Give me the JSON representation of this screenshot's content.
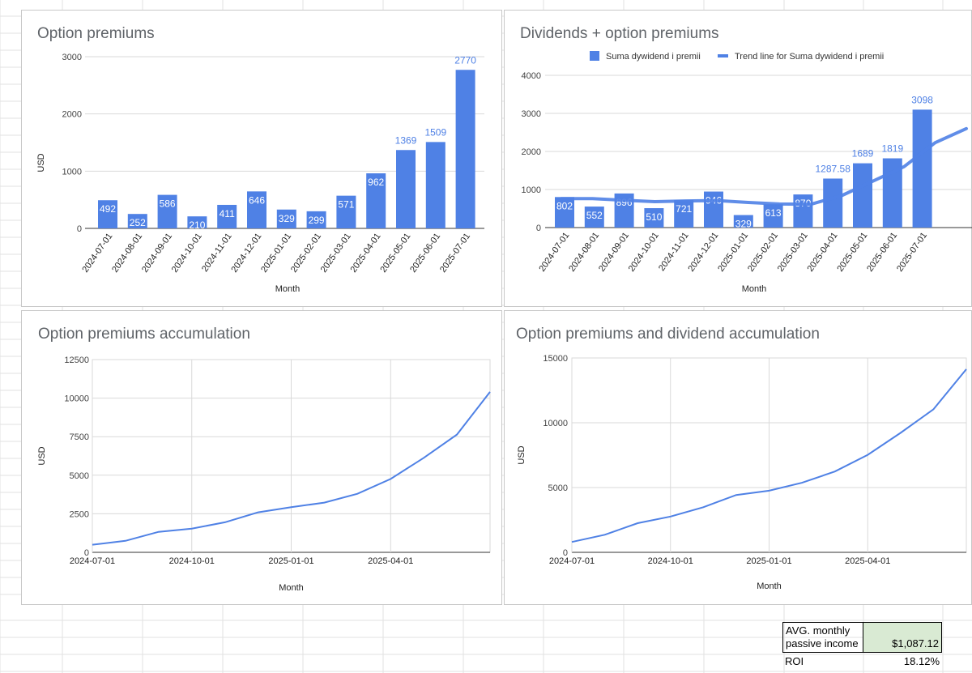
{
  "charts": [
    {
      "type": "bar",
      "title": "Option premiums",
      "xlabel": "Month",
      "ylabel": "USD",
      "ylim": [
        0,
        3000
      ],
      "yticks": [
        0,
        1000,
        2000,
        3000
      ],
      "categories": [
        "2024-07-01",
        "2024-08-01",
        "2024-09-01",
        "2024-10-01",
        "2024-11-01",
        "2024-12-01",
        "2025-01-01",
        "2025-02-01",
        "2025-03-01",
        "2025-04-01",
        "2025-05-01",
        "2025-06-01",
        "2025-07-01"
      ],
      "values": [
        492,
        252,
        586,
        210,
        411,
        646,
        329,
        299,
        571,
        962,
        1369,
        1509,
        2770
      ],
      "labels": [
        "492",
        "252",
        "586",
        "210",
        "411",
        "646",
        "329",
        "299",
        "571",
        "962",
        "1369",
        "1509",
        "2770"
      ],
      "color": "#4f81e5"
    },
    {
      "type": "bar",
      "title": "Dividends + option premiums",
      "xlabel": "Month",
      "ylabel": "",
      "ylim": [
        0,
        4000
      ],
      "yticks": [
        0,
        1000,
        2000,
        3000,
        4000
      ],
      "legend": [
        "Suma dywidend i premii",
        "Trend line for Suma dywidend i premii"
      ],
      "categories": [
        "2024-07-01",
        "2024-08-01",
        "2024-09-01",
        "2024-10-01",
        "2024-11-01",
        "2024-12-01",
        "2025-01-01",
        "2025-02-01",
        "2025-03-01",
        "2025-04-01",
        "2025-05-01",
        "2025-06-01",
        "2025-07-01"
      ],
      "values": [
        802,
        552,
        896,
        510,
        721,
        946,
        329,
        613,
        870,
        1287.58,
        1689,
        1819,
        3098
      ],
      "labels": [
        "802",
        "552",
        "896",
        "510",
        "721",
        "946",
        "329",
        "613",
        "870",
        "1287.58",
        "1689",
        "1819",
        "3098"
      ],
      "trend": [
        760,
        760,
        720,
        680,
        700,
        710,
        660,
        620,
        610,
        840,
        1220,
        1600,
        2230,
        2600
      ],
      "color": "#4f81e5"
    },
    {
      "type": "line",
      "title": "Option premiums accumulation",
      "xlabel": "Month",
      "ylabel": "USD",
      "ylim": [
        0,
        12500
      ],
      "yticks": [
        0,
        2500,
        5000,
        7500,
        10000,
        12500
      ],
      "xticks": [
        "2024-07-01",
        "2024-10-01",
        "2025-01-01",
        "2025-04-01"
      ],
      "x": [
        "2024-07-01",
        "2024-08-01",
        "2024-09-01",
        "2024-10-01",
        "2024-11-01",
        "2024-12-01",
        "2025-01-01",
        "2025-02-01",
        "2025-03-01",
        "2025-04-01",
        "2025-05-01",
        "2025-06-01",
        "2025-07-01"
      ],
      "values": [
        492,
        744,
        1330,
        1540,
        1951,
        2597,
        2926,
        3225,
        3796,
        4758,
        6127,
        7636,
        10406
      ],
      "color": "#4f81e5"
    },
    {
      "type": "line",
      "title": "Option premiums  and dividend accumulation",
      "xlabel": "Month",
      "ylabel": "USD",
      "ylim": [
        0,
        15000
      ],
      "yticks": [
        0,
        5000,
        10000,
        15000
      ],
      "xticks": [
        "2024-07-01",
        "2024-10-01",
        "2025-01-01",
        "2025-04-01"
      ],
      "x": [
        "2024-07-01",
        "2024-08-01",
        "2024-09-01",
        "2024-10-01",
        "2024-11-01",
        "2024-12-01",
        "2025-01-01",
        "2025-02-01",
        "2025-03-01",
        "2025-04-01",
        "2025-05-01",
        "2025-06-01",
        "2025-07-01"
      ],
      "values": [
        802,
        1354,
        2250,
        2760,
        3481,
        4427,
        4756,
        5369,
        6239,
        7527,
        9216,
        11035,
        14133
      ],
      "color": "#4f81e5"
    }
  ],
  "summary": {
    "avg_label_line1": "AVG. monthly",
    "avg_label_line2": "passive income",
    "avg_value": "$1,087.12",
    "roi_label": "ROI",
    "roi_value": "18.12%",
    "highlight_color": "#d9ead3"
  }
}
